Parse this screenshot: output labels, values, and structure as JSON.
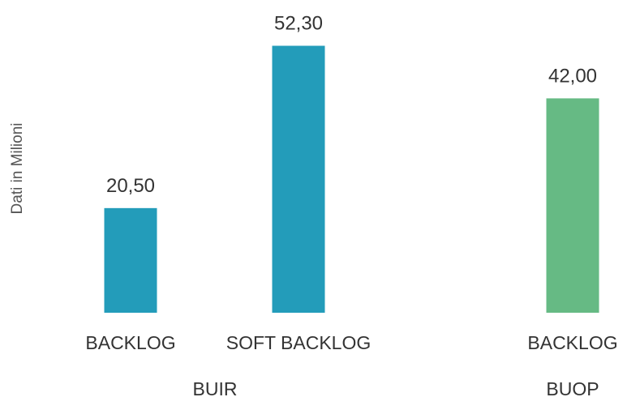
{
  "chart_data": {
    "type": "bar",
    "ylabel": "Dati in Milioni",
    "ylim": [
      0,
      55
    ],
    "grid": false,
    "groups": [
      {
        "name": "BUIR",
        "color": "#239CBA",
        "bars": [
          {
            "category": "BACKLOG",
            "value": 20.5,
            "label": "20,50"
          },
          {
            "category": "SOFT BACKLOG",
            "value": 52.3,
            "label": "52,30"
          }
        ]
      },
      {
        "name": "BUOP",
        "color": "#66BA84",
        "bars": [
          {
            "category": "BACKLOG",
            "value": 42.0,
            "label": "42,00"
          }
        ]
      }
    ]
  }
}
